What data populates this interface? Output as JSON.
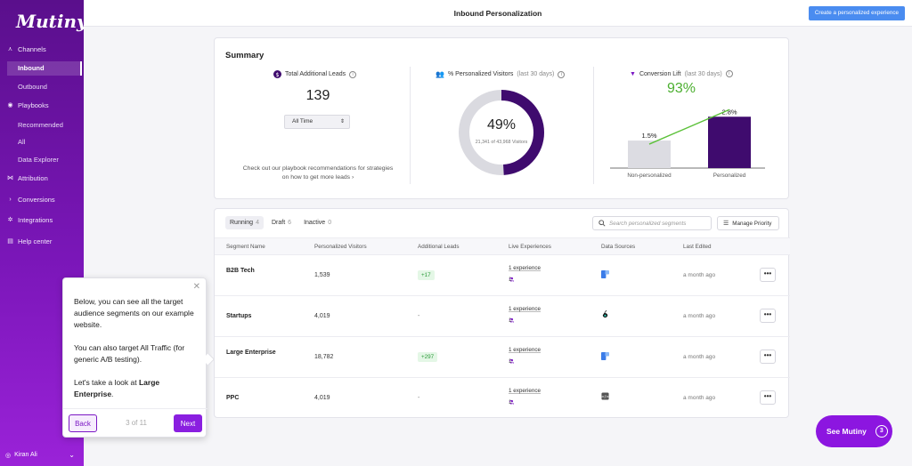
{
  "app": {
    "logo": "Mutiny"
  },
  "sidebar": {
    "sections": [
      {
        "label": "Channels",
        "icon": "channels-icon"
      },
      {
        "label": "Playbooks",
        "icon": "playbooks-icon"
      },
      {
        "label": "Attribution",
        "icon": "attribution-icon"
      },
      {
        "label": "Conversions",
        "icon": "conversions-icon"
      },
      {
        "label": "Integrations",
        "icon": "integrations-icon"
      },
      {
        "label": "Help center",
        "icon": "help-icon"
      }
    ],
    "channel_items": [
      "Inbound",
      "Outbound"
    ],
    "playbook_items": [
      "Recommended",
      "All",
      "Data Explorer"
    ],
    "user": "Kiran Ali"
  },
  "header": {
    "title": "Inbound Personalization",
    "create_button": "Create a personalized experience"
  },
  "summary": {
    "title": "Summary",
    "total_leads": {
      "label": "Total Additional Leads",
      "value": "139",
      "range": "All Time"
    },
    "personalized_visitors": {
      "label": "% Personalized Visitors",
      "suffix": "(last 30 days)",
      "percent": "49%",
      "detail": "21,341 of 43,968 Visitors",
      "fraction": 0.49
    },
    "conversion_lift": {
      "label": "Conversion Lift",
      "suffix": "(last 30 days)",
      "lift": "93%"
    },
    "recommendation": "Check out our playbook recommendations for strategies on how to get more leads ›"
  },
  "chart_data": {
    "type": "bar",
    "categories": [
      "Non-personalized",
      "Personalized"
    ],
    "values": [
      1.5,
      2.8
    ],
    "value_labels": [
      "1.5%",
      "2.8%"
    ],
    "colors": [
      "#dcdce2",
      "#3f0b6e"
    ],
    "ylim": [
      0,
      3.2
    ],
    "trend_line_color": "#5cc13a"
  },
  "table": {
    "tabs": [
      {
        "label": "Running",
        "count": "4"
      },
      {
        "label": "Draft",
        "count": "6"
      },
      {
        "label": "Inactive",
        "count": "0"
      }
    ],
    "search_placeholder": "Search personalized segments",
    "priority_button": "Manage Priority",
    "columns": [
      "Segment Name",
      "Personalized Visitors",
      "Additional Leads",
      "Live Experiences",
      "Data Sources",
      "Last Edited"
    ],
    "rows": [
      {
        "name": "B2B Tech",
        "visitors": "1,539",
        "leads": "+17",
        "experience": "1 experience",
        "exp_count": "1",
        "source": "clearbit",
        "edited": "a month ago"
      },
      {
        "name": "Startups",
        "visitors": "4,019",
        "leads": "-",
        "experience": "1 experience",
        "exp_count": "1",
        "source": "6sense",
        "edited": "a month ago"
      },
      {
        "name": "Large Enterprise",
        "visitors": "18,782",
        "leads": "+297",
        "experience": "1 experience",
        "exp_count": "1",
        "source": "clearbit",
        "edited": "a month ago"
      },
      {
        "name": "PPC",
        "visitors": "4,019",
        "leads": "-",
        "experience": "1 experience",
        "exp_count": "1",
        "source": "utm",
        "edited": "a month ago"
      }
    ]
  },
  "tooltip": {
    "para1": "Below, you can see all the target audience segments on our example website.",
    "para2": "You can also target All Traffic (for generic A/B testing).",
    "para3_prefix": "Let's take a look at ",
    "para3_bold": "Large Enterprise",
    "para3_suffix": ".",
    "back": "Back",
    "step": "3 of 11",
    "next": "Next"
  },
  "floating": {
    "label": "See Mutiny",
    "badge": "3"
  }
}
